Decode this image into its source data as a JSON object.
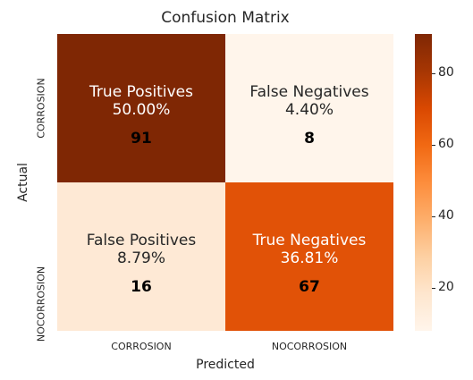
{
  "chart_data": {
    "type": "heatmap",
    "title": "Confusion Matrix",
    "xlabel": "Predicted",
    "ylabel": "Actual",
    "x_categories": [
      "CORROSION",
      "NOCORROSION"
    ],
    "y_categories": [
      "CORROSION",
      "NOCORROSION"
    ],
    "cells": [
      [
        {
          "label": "True Positives",
          "percent": "50.00%",
          "count": 91,
          "value": 91
        },
        {
          "label": "False Negatives",
          "percent": "4.40%",
          "count": 8,
          "value": 8
        }
      ],
      [
        {
          "label": "False Positives",
          "percent": "8.79%",
          "count": 16,
          "value": 16
        },
        {
          "label": "True Negatives",
          "percent": "36.81%",
          "count": 67,
          "value": 67
        }
      ]
    ],
    "colorbar": {
      "colormap": "Oranges",
      "range": [
        8,
        91
      ],
      "ticks": [
        20,
        40,
        60,
        80
      ],
      "colors": [
        "#fff5eb",
        "#fee6ce",
        "#fdd0a2",
        "#fdae6b",
        "#fd8d3c",
        "#f16913",
        "#d94801",
        "#a63603",
        "#7f2704"
      ]
    }
  }
}
